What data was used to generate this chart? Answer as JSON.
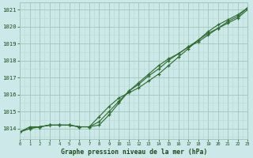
{
  "hours": [
    0,
    1,
    2,
    3,
    4,
    5,
    6,
    7,
    8,
    9,
    10,
    11,
    12,
    13,
    14,
    15,
    16,
    17,
    18,
    19,
    20,
    21,
    22,
    23
  ],
  "line1": [
    1013.8,
    1014.1,
    1014.1,
    1014.2,
    1014.2,
    1014.2,
    1014.1,
    1014.1,
    1014.2,
    1014.8,
    1015.5,
    1016.2,
    1016.7,
    1017.2,
    1017.7,
    1018.1,
    1018.4,
    1018.8,
    1019.1,
    1019.5,
    1019.9,
    1020.2,
    1020.5,
    1021.0
  ],
  "line2": [
    1013.8,
    1014.0,
    1014.1,
    1014.2,
    1014.2,
    1014.2,
    1014.1,
    1014.1,
    1014.4,
    1015.0,
    1015.6,
    1016.2,
    1016.6,
    1017.1,
    1017.5,
    1018.0,
    1018.4,
    1018.8,
    1019.2,
    1019.6,
    1019.9,
    1020.3,
    1020.6,
    1021.1
  ],
  "line3": [
    1013.8,
    1014.0,
    1014.1,
    1014.2,
    1014.2,
    1014.2,
    1014.1,
    1014.1,
    1014.7,
    1015.3,
    1015.8,
    1016.1,
    1016.4,
    1016.8,
    1017.2,
    1017.7,
    1018.2,
    1018.7,
    1019.2,
    1019.7,
    1020.1,
    1020.4,
    1020.7,
    1021.1
  ],
  "line_color": "#2d6a2d",
  "bg_color": "#cce8e8",
  "grid_major_color": "#a0c8b8",
  "grid_minor_color": "#b8dcd0",
  "ylabel_ticks": [
    1014,
    1015,
    1016,
    1017,
    1018,
    1019,
    1020,
    1021
  ],
  "xlabel": "Graphe pression niveau de la mer (hPa)",
  "ylim": [
    1013.4,
    1021.4
  ],
  "xlim": [
    0,
    23
  ],
  "xlabel_color": "#1a4a1a",
  "tick_color": "#1a4a1a",
  "axis_bg": "#cce8e8"
}
